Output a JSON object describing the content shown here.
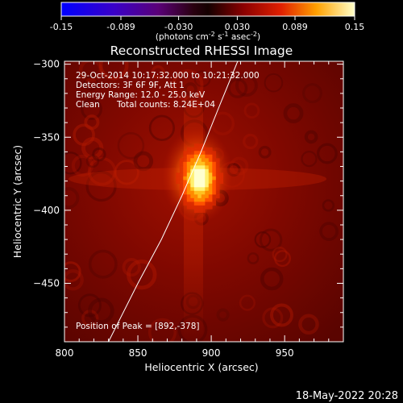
{
  "colorbar": {
    "ticks": [
      "-0.15",
      "-0.089",
      "-0.030",
      "0.030",
      "0.089",
      "0.15"
    ],
    "unit_label": "(photons cm",
    "unit_sup1": "-2",
    "unit_mid": " s",
    "unit_sup2": "-1",
    "unit_mid2": " asec",
    "unit_sup3": "-2",
    "unit_end": ")"
  },
  "image": {
    "title": "Reconstructed RHESSI Image",
    "time_range": "29-Oct-2014 10:17:32.000 to 10:21:32.000",
    "detectors": "Detectors: 3F 6F 9F, Att 1",
    "energy_range": "Energy Range: 12.0 - 25.0 keV",
    "method": "Clean",
    "total_counts": "Total counts: 8.24E+04",
    "peak_position": "Position of Peak = [892,-378]"
  },
  "chart_data": {
    "type": "heatmap",
    "xlabel": "Heliocentric X (arcsec)",
    "ylabel": "Heliocentric Y (arcsec)",
    "xlim": [
      800,
      990
    ],
    "ylim": [
      -490,
      -298
    ],
    "xticks": [
      800,
      850,
      900,
      950
    ],
    "yticks": [
      -300,
      -350,
      -400,
      -450
    ],
    "xtick_labels": [
      "800",
      "850",
      "900",
      "950"
    ],
    "ytick_labels": [
      "−300",
      "−350",
      "−400",
      "−450"
    ],
    "colorbar_range": [
      -0.15,
      0.15
    ],
    "peak": {
      "x": 892,
      "y": -378
    },
    "limb_curve": [
      [
        830,
        -490
      ],
      [
        850,
        -450
      ],
      [
        866,
        -420
      ],
      [
        880,
        -390
      ],
      [
        893,
        -360
      ],
      [
        905,
        -330
      ],
      [
        918,
        -298
      ]
    ]
  },
  "footer": {
    "date": "18-May-2022 20:28"
  }
}
